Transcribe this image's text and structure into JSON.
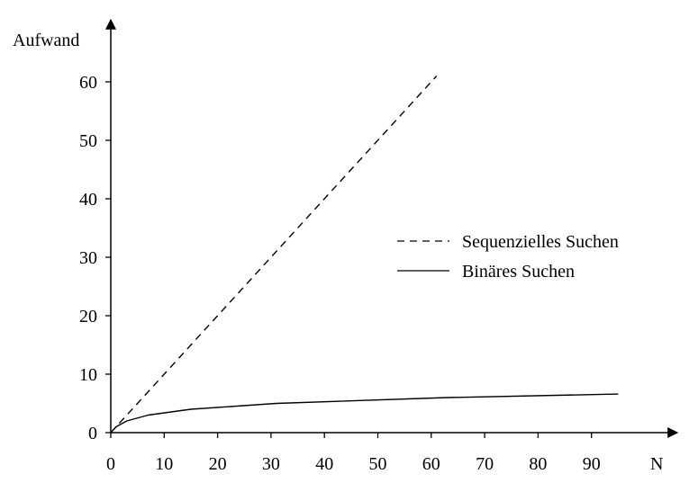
{
  "chart_data": {
    "type": "line",
    "xlabel": "N",
    "ylabel": "Aufwand",
    "xlim": [
      0,
      100
    ],
    "ylim": [
      0,
      65
    ],
    "xticks": [
      0,
      10,
      20,
      30,
      40,
      50,
      60,
      70,
      80,
      90
    ],
    "yticks": [
      0,
      10,
      20,
      30,
      40,
      50,
      60
    ],
    "legend_position": "right",
    "series": [
      {
        "name": "Sequenzielles Suchen",
        "style": "dashed",
        "x": [
          0,
          61
        ],
        "values": [
          0,
          61
        ]
      },
      {
        "name": "Binäres Suchen",
        "style": "solid",
        "x": [
          0,
          1,
          3,
          7,
          15,
          31,
          63,
          95
        ],
        "values": [
          0,
          1,
          2,
          3,
          4,
          5,
          6,
          6.6
        ]
      }
    ]
  }
}
